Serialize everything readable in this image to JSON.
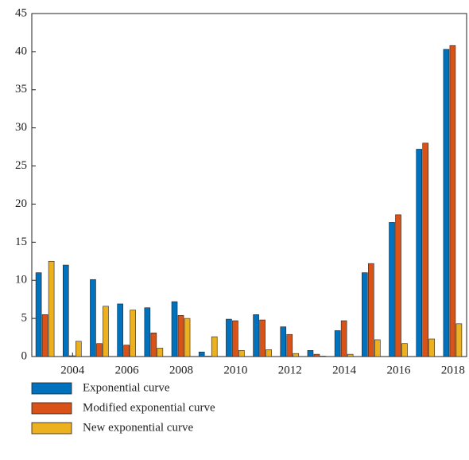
{
  "chart_data": {
    "type": "bar",
    "categories": [
      null,
      "2004",
      null,
      "2006",
      null,
      "2008",
      null,
      "2010",
      null,
      "2012",
      null,
      "2014",
      null,
      "2016",
      null,
      "2018"
    ],
    "series": [
      {
        "name": "Exponential curve",
        "color": "#0072BD",
        "values": [
          11.0,
          12.0,
          10.1,
          6.9,
          6.4,
          7.2,
          0.6,
          4.9,
          5.5,
          3.9,
          0.8,
          3.4,
          11.0,
          17.6,
          27.2,
          40.3
        ]
      },
      {
        "name": "Modified exponential curve",
        "color": "#D95319",
        "values": [
          5.5,
          0.1,
          1.7,
          1.5,
          3.1,
          5.4,
          0.05,
          4.7,
          4.8,
          2.9,
          0.3,
          4.7,
          12.2,
          18.6,
          28.0,
          40.8
        ]
      },
      {
        "name": "New exponential curve",
        "color": "#EDB120",
        "values": [
          12.5,
          2.0,
          6.6,
          6.1,
          1.1,
          5.0,
          2.6,
          0.8,
          0.9,
          0.4,
          0.05,
          0.3,
          2.2,
          1.7,
          2.3,
          4.3
        ]
      }
    ],
    "ylim": [
      0,
      45
    ],
    "yticks": [
      0,
      5,
      10,
      15,
      20,
      25,
      30,
      35,
      40,
      45
    ],
    "grid": false,
    "legend": "bottom"
  }
}
